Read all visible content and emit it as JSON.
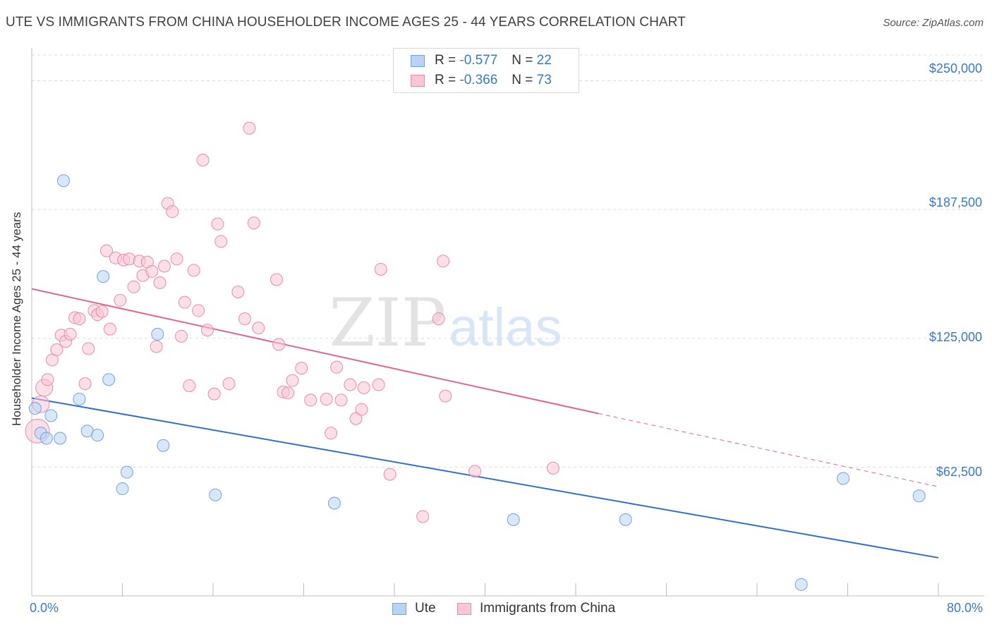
{
  "header": {
    "title": "UTE VS IMMIGRANTS FROM CHINA HOUSEHOLDER INCOME AGES 25 - 44 YEARS CORRELATION CHART",
    "source": "Source: ZipAtlas.com"
  },
  "watermark": {
    "zip": "ZIP",
    "atlas": "atlas"
  },
  "legend": {
    "r_label": "R =",
    "n_label": "N =",
    "rows": [
      {
        "r": "-0.577",
        "n": "22"
      },
      {
        "r": "-0.366",
        "n": "73"
      }
    ]
  },
  "colors": {
    "ute": "#6fa3e8",
    "ute_fill": "#b9d3f5",
    "ute_line": "#2f6fd0",
    "china": "#ee8aa8",
    "china_fill": "#f8c6d5",
    "china_line": "#e06690",
    "tick_text": "#3b78c8"
  },
  "chart_data": {
    "type": "scatter",
    "title": "UTE VS IMMIGRANTS FROM CHINA HOUSEHOLDER INCOME AGES 25 - 44 YEARS CORRELATION CHART",
    "xlabel": "",
    "ylabel": "Householder Income Ages 25 - 44 years",
    "xlim": [
      0,
      80
    ],
    "ylim": [
      0,
      262500
    ],
    "x_tick_labels": [
      "0.0%",
      "80.0%"
    ],
    "y_ticks": [
      62500,
      125000,
      187500,
      250000
    ],
    "y_tick_labels": [
      "$62,500",
      "$125,000",
      "$187,500",
      "$250,000"
    ],
    "series": [
      {
        "name": "Ute",
        "points": [
          [
            0.3,
            91000
          ],
          [
            0.8,
            79000
          ],
          [
            1.3,
            76500
          ],
          [
            1.7,
            87500
          ],
          [
            2.5,
            76500
          ],
          [
            2.8,
            201500
          ],
          [
            4.2,
            95500
          ],
          [
            4.9,
            80000
          ],
          [
            5.8,
            78000
          ],
          [
            6.3,
            155000
          ],
          [
            6.8,
            105000
          ],
          [
            8.0,
            52000
          ],
          [
            8.4,
            60000
          ],
          [
            11.1,
            127000
          ],
          [
            11.6,
            73000
          ],
          [
            16.2,
            49000
          ],
          [
            26.7,
            45000
          ],
          [
            42.5,
            37000
          ],
          [
            52.4,
            37000
          ],
          [
            67.9,
            5500
          ],
          [
            71.6,
            57000
          ],
          [
            78.3,
            48500
          ]
        ],
        "trend": {
          "x0": 0,
          "y0": 96000,
          "x1": 80,
          "y1": 18500
        }
      },
      {
        "name": "Immigrants from China",
        "points": [
          [
            0.5,
            80000
          ],
          [
            0.8,
            93000
          ],
          [
            1.1,
            101000
          ],
          [
            1.4,
            105000
          ],
          [
            1.8,
            114500
          ],
          [
            2.2,
            119500
          ],
          [
            2.6,
            126500
          ],
          [
            3.0,
            123500
          ],
          [
            3.4,
            127000
          ],
          [
            3.8,
            135000
          ],
          [
            4.2,
            134500
          ],
          [
            4.7,
            103000
          ],
          [
            5.0,
            120000
          ],
          [
            5.5,
            138500
          ],
          [
            5.8,
            136500
          ],
          [
            6.2,
            138000
          ],
          [
            6.6,
            167500
          ],
          [
            6.9,
            129500
          ],
          [
            7.4,
            164000
          ],
          [
            7.8,
            143500
          ],
          [
            8.1,
            163000
          ],
          [
            8.6,
            163500
          ],
          [
            9.0,
            150000
          ],
          [
            9.5,
            162500
          ],
          [
            9.8,
            155500
          ],
          [
            10.2,
            162000
          ],
          [
            10.6,
            157500
          ],
          [
            11.0,
            121000
          ],
          [
            11.3,
            152000
          ],
          [
            11.7,
            160000
          ],
          [
            12.0,
            190500
          ],
          [
            12.4,
            186500
          ],
          [
            12.8,
            163500
          ],
          [
            13.2,
            126000
          ],
          [
            13.5,
            142500
          ],
          [
            13.9,
            102000
          ],
          [
            14.3,
            158000
          ],
          [
            14.7,
            138500
          ],
          [
            15.1,
            211500
          ],
          [
            15.5,
            129000
          ],
          [
            16.1,
            98000
          ],
          [
            16.4,
            180500
          ],
          [
            16.7,
            172000
          ],
          [
            17.4,
            103000
          ],
          [
            18.2,
            147500
          ],
          [
            18.8,
            134500
          ],
          [
            19.2,
            227000
          ],
          [
            19.6,
            181000
          ],
          [
            20.0,
            130000
          ],
          [
            21.6,
            153500
          ],
          [
            21.8,
            122000
          ],
          [
            22.2,
            99000
          ],
          [
            22.6,
            98500
          ],
          [
            23.0,
            104500
          ],
          [
            23.8,
            110500
          ],
          [
            24.6,
            95000
          ],
          [
            26.0,
            95500
          ],
          [
            26.4,
            79000
          ],
          [
            26.9,
            111000
          ],
          [
            27.3,
            95000
          ],
          [
            28.1,
            102500
          ],
          [
            28.6,
            86000
          ],
          [
            29.1,
            90500
          ],
          [
            29.3,
            101000
          ],
          [
            30.6,
            102500
          ],
          [
            30.8,
            158500
          ],
          [
            31.6,
            59000
          ],
          [
            34.5,
            38500
          ],
          [
            35.9,
            134500
          ],
          [
            36.3,
            162500
          ],
          [
            36.5,
            97000
          ],
          [
            39.1,
            60500
          ],
          [
            46.0,
            62000
          ]
        ],
        "trend": {
          "x0": 0,
          "y0": 149000,
          "x1": 50,
          "y1": 88500,
          "dash_x1": 80,
          "dash_y1": 53000
        }
      }
    ]
  }
}
